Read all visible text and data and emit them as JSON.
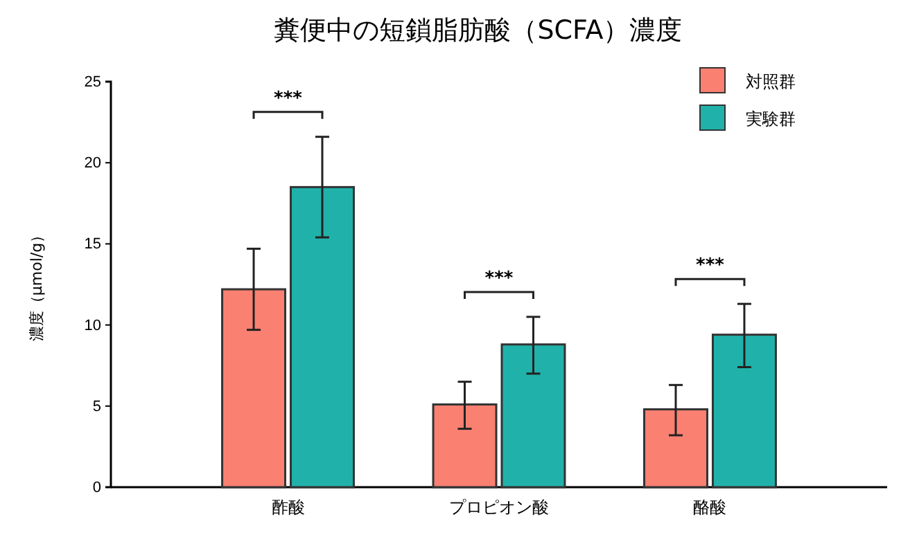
{
  "chart_data": {
    "type": "bar",
    "title": "糞便中の短鎖脂肪酸（SCFA）濃度",
    "ylabel": "濃度（μmol/g）",
    "categories": [
      "酢酸",
      "プロピオン酸",
      "酪酸"
    ],
    "series": [
      {
        "name": "対照群",
        "color": "#fa8072",
        "values": [
          12.2,
          5.1,
          4.8
        ],
        "errors": [
          [
            9.7,
            14.7
          ],
          [
            3.6,
            6.5
          ],
          [
            3.2,
            6.3
          ]
        ]
      },
      {
        "name": "実験群",
        "color": "#20b2aa",
        "values": [
          18.5,
          8.8,
          9.4
        ],
        "errors": [
          [
            15.4,
            21.6
          ],
          [
            7.0,
            10.5
          ],
          [
            7.4,
            11.3
          ]
        ]
      }
    ],
    "ylim": [
      0,
      25
    ],
    "yticks": [
      0,
      5,
      10,
      15,
      20,
      25
    ],
    "grid": false,
    "legend": "top right",
    "annotations": [
      "***",
      "***",
      "***"
    ]
  }
}
